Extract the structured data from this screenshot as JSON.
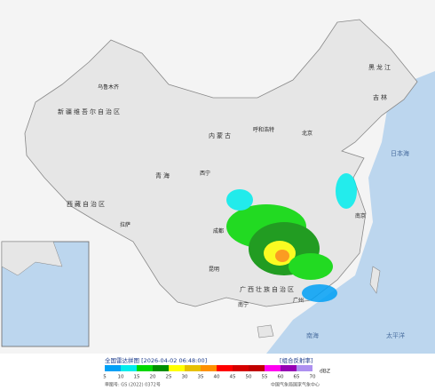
{
  "legend": {
    "title": "全国雷达拼图 [2026-04-02 06:48:00]",
    "product": "[组合反射率]",
    "unit": "dBZ",
    "values": [
      5,
      10,
      15,
      20,
      25,
      30,
      35,
      40,
      45,
      50,
      55,
      60,
      65,
      70
    ],
    "colors": [
      "#01a0f6",
      "#00ecec",
      "#00d800",
      "#019000",
      "#ffff00",
      "#e7c000",
      "#ff9000",
      "#ff0000",
      "#d60000",
      "#c00000",
      "#ff00f0",
      "#9600b4",
      "#ad90f0"
    ]
  },
  "footer": {
    "approval": "审图号: GS (2022) 0372号",
    "publisher": "中国气象局国家气象中心"
  },
  "places": [
    "新疆维吾尔自治区",
    "西藏自治区",
    "青海",
    "内蒙古",
    "黑龙江",
    "吉林",
    "广西壮族自治区",
    "乌鲁木齐",
    "拉萨",
    "西宁",
    "呼和浩特",
    "北京",
    "成都",
    "昆明",
    "南宁",
    "广州",
    "南京",
    "日本海",
    "太平洋",
    "南海"
  ]
}
